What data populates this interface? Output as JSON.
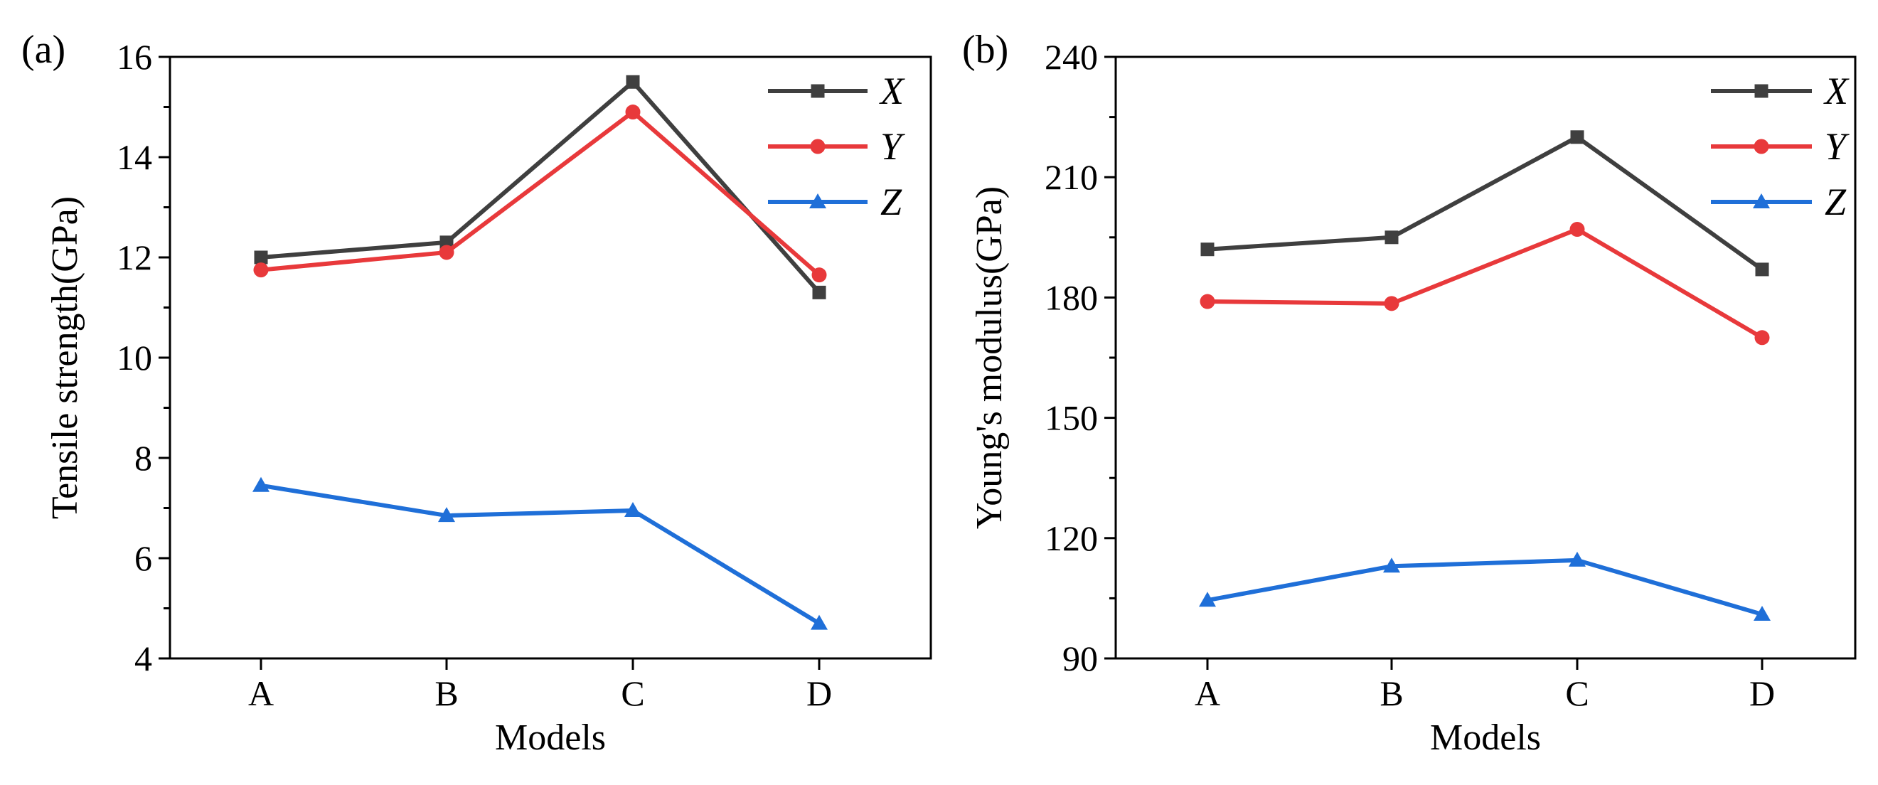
{
  "chart_data": [
    {
      "type": "line",
      "panel_label": "(a)",
      "categories": [
        "A",
        "B",
        "C",
        "D"
      ],
      "xlabel": "Models",
      "ylabel": "Tensile strength(GPa)",
      "ylim": [
        4,
        16
      ],
      "yticks": [
        "4",
        "6",
        "8",
        "10",
        "12",
        "14",
        "16"
      ],
      "grid": false,
      "legend_position": "top-right",
      "series": [
        {
          "name": "X",
          "color": "#3f3f3f",
          "marker": "square",
          "values": [
            12.0,
            12.3,
            15.5,
            11.3
          ]
        },
        {
          "name": "Y",
          "color": "#e8393b",
          "marker": "circle",
          "values": [
            11.75,
            12.1,
            14.9,
            11.65
          ]
        },
        {
          "name": "Z",
          "color": "#1f6fd8",
          "marker": "triangle",
          "values": [
            7.45,
            6.85,
            6.95,
            4.7
          ]
        }
      ]
    },
    {
      "type": "line",
      "panel_label": "(b)",
      "categories": [
        "A",
        "B",
        "C",
        "D"
      ],
      "xlabel": "Models",
      "ylabel": "Young's modulus(GPa)",
      "ylim": [
        90,
        240
      ],
      "yticks": [
        "90",
        "120",
        "150",
        "180",
        "210",
        "240"
      ],
      "grid": false,
      "legend_position": "top-right",
      "series": [
        {
          "name": "X",
          "color": "#3f3f3f",
          "marker": "square",
          "values": [
            192,
            195,
            220,
            187
          ]
        },
        {
          "name": "Y",
          "color": "#e8393b",
          "marker": "circle",
          "values": [
            179,
            178.5,
            197,
            170
          ]
        },
        {
          "name": "Z",
          "color": "#1f6fd8",
          "marker": "triangle",
          "values": [
            104.5,
            113,
            114.5,
            101
          ]
        }
      ]
    }
  ]
}
